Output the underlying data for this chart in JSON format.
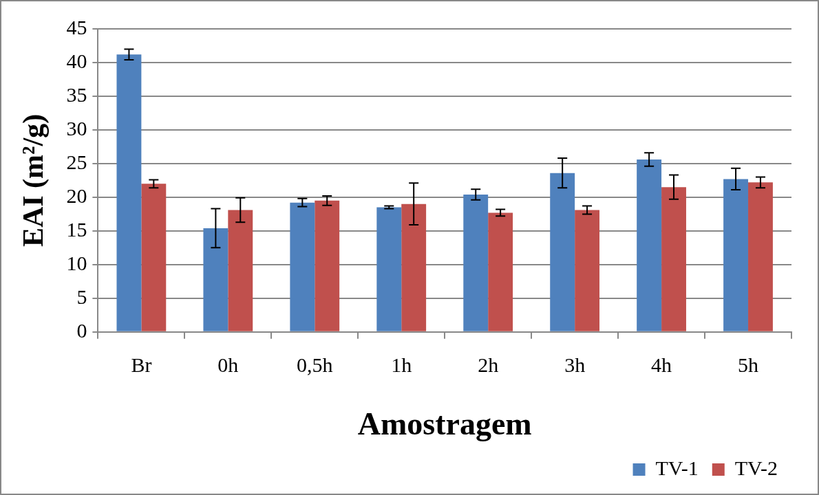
{
  "chart_data": {
    "type": "bar",
    "xlabel": "Amostragem",
    "ylabel": "EAI (m²/g)",
    "categories": [
      "Br",
      "0h",
      "0,5h",
      "1h",
      "2h",
      "3h",
      "4h",
      "5h"
    ],
    "series": [
      {
        "name": "TV-1",
        "color": "#4f81bd",
        "values": [
          41.2,
          15.4,
          19.2,
          18.5,
          20.4,
          23.6,
          25.6,
          22.7
        ],
        "errors": [
          0.8,
          2.9,
          0.6,
          0.2,
          0.8,
          2.2,
          1.0,
          1.6
        ]
      },
      {
        "name": "TV-2",
        "color": "#c0504d",
        "values": [
          22.0,
          18.1,
          19.5,
          19.0,
          17.7,
          18.1,
          21.5,
          22.2
        ],
        "errors": [
          0.6,
          1.8,
          0.7,
          3.1,
          0.5,
          0.6,
          1.8,
          0.8
        ]
      }
    ],
    "ylim": [
      0,
      45
    ],
    "yticks": [
      0,
      5,
      10,
      15,
      20,
      25,
      30,
      35,
      40,
      45
    ],
    "grid": "y",
    "legend": "bottom right"
  }
}
